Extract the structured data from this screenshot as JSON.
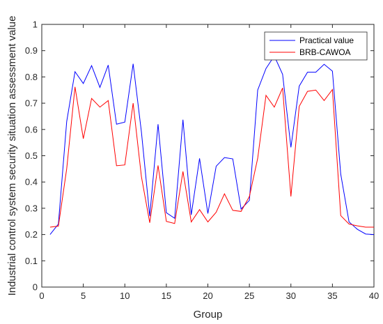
{
  "chart_data": {
    "type": "line",
    "xlabel": "Group",
    "ylabel": "Industrial control system security situation assessment value",
    "xlim": [
      0,
      40
    ],
    "ylim": [
      0,
      1
    ],
    "xticks": [
      0,
      5,
      10,
      15,
      20,
      25,
      30,
      35,
      40
    ],
    "yticks": [
      0,
      0.1,
      0.2,
      0.3,
      0.4,
      0.5,
      0.6,
      0.7,
      0.8,
      0.9,
      1
    ],
    "grid": false,
    "legend_position": "top-right",
    "x": [
      1,
      2,
      3,
      4,
      5,
      6,
      7,
      8,
      9,
      10,
      11,
      12,
      13,
      14,
      15,
      16,
      17,
      18,
      19,
      20,
      21,
      22,
      23,
      24,
      25,
      26,
      27,
      28,
      29,
      30,
      31,
      32,
      33,
      34,
      35,
      36,
      37,
      38,
      39,
      40
    ],
    "series": [
      {
        "name": "Practical value",
        "color": "#0000ff",
        "values": [
          0.2,
          0.24,
          0.63,
          0.82,
          0.775,
          0.843,
          0.76,
          0.845,
          0.62,
          0.628,
          0.85,
          0.59,
          0.27,
          0.62,
          0.283,
          0.262,
          0.637,
          0.275,
          0.49,
          0.28,
          0.46,
          0.493,
          0.488,
          0.297,
          0.33,
          0.75,
          0.832,
          0.88,
          0.81,
          0.532,
          0.765,
          0.818,
          0.818,
          0.848,
          0.822,
          0.43,
          0.248,
          0.22,
          0.202,
          0.2
        ]
      },
      {
        "name": "BRB-CAWOA",
        "color": "#ff0000",
        "values": [
          0.228,
          0.232,
          0.45,
          0.762,
          0.565,
          0.718,
          0.685,
          0.71,
          0.462,
          0.465,
          0.7,
          0.42,
          0.245,
          0.463,
          0.25,
          0.242,
          0.44,
          0.248,
          0.295,
          0.248,
          0.285,
          0.355,
          0.292,
          0.288,
          0.345,
          0.49,
          0.73,
          0.685,
          0.758,
          0.345,
          0.688,
          0.745,
          0.75,
          0.71,
          0.752,
          0.272,
          0.24,
          0.233,
          0.228,
          0.228
        ]
      }
    ]
  }
}
